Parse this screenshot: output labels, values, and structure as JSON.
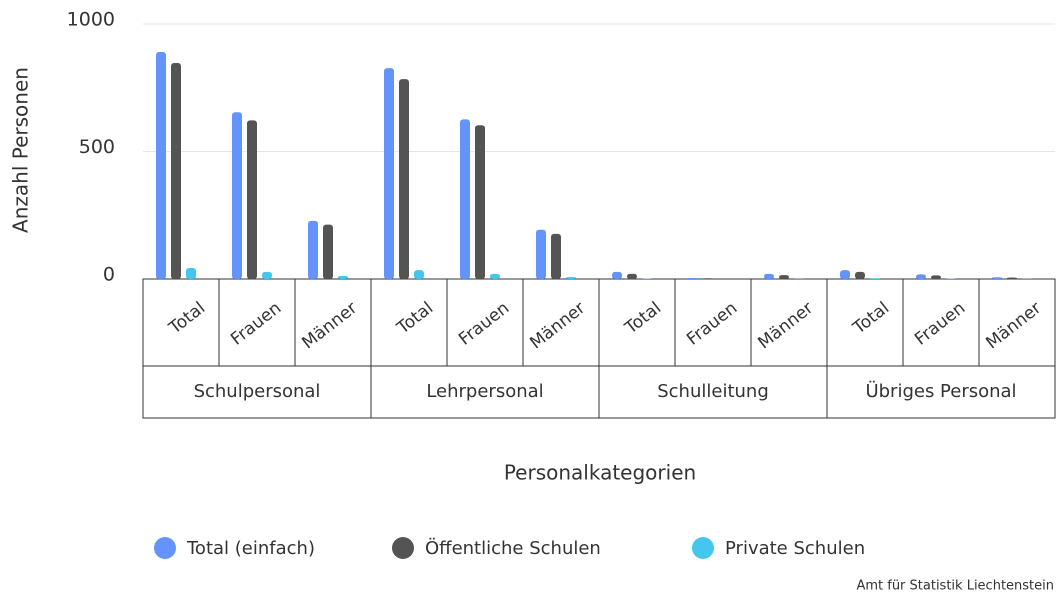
{
  "chart_data": {
    "type": "grouped-bar",
    "y_label": "Anzahl Personen",
    "x_label": "Personalkategorien",
    "credit": "Amt für Statistik Liechtenstein",
    "groups": [
      {
        "name": "Schulpersonal",
        "categories": [
          "Total",
          "Frauen",
          "Männer"
        ]
      },
      {
        "name": "Lehrpersonal",
        "categories": [
          "Total",
          "Frauen",
          "Männer"
        ]
      },
      {
        "name": "Schulleitung",
        "categories": [
          "Total",
          "Frauen",
          "Männer"
        ]
      },
      {
        "name": "Übriges Personal",
        "categories": [
          "Total",
          "Frauen",
          "Männer"
        ]
      }
    ],
    "series": [
      {
        "name": "Total (einfach)",
        "color": "#6393fb",
        "values": [
          890,
          654,
          228,
          827,
          626,
          193,
          28,
          4,
          20,
          35,
          18,
          7
        ]
      },
      {
        "name": "Öffentliche Schulen",
        "color": "#545454",
        "values": [
          847,
          622,
          213,
          784,
          603,
          177,
          20,
          3,
          15,
          28,
          14,
          6
        ]
      },
      {
        "name": "Private Schulen",
        "color": "#45c6ee",
        "values": [
          43,
          28,
          12,
          35,
          20,
          8,
          2,
          0,
          1,
          3,
          2,
          1
        ]
      }
    ],
    "ylim": [
      0,
      1000
    ],
    "yticks": [
      0,
      500,
      1000
    ],
    "grid": true
  }
}
